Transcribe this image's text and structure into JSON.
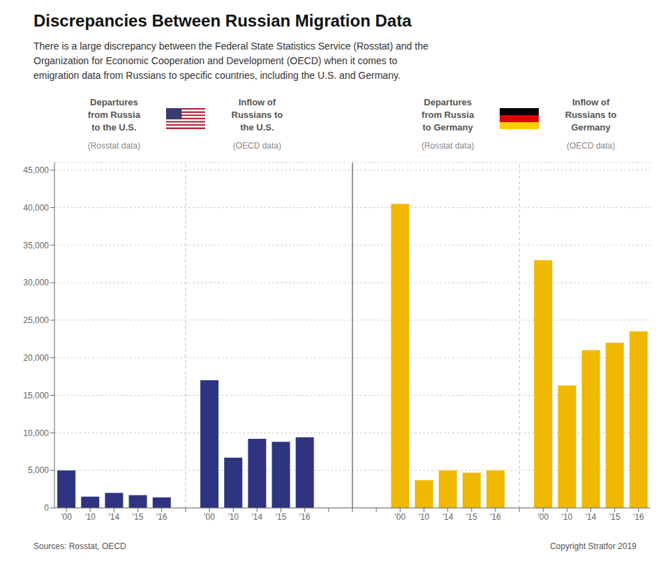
{
  "chart_data": {
    "type": "bar",
    "title": "Discrepancies Between Russian Migration Data",
    "subtitle": "There is a large discrepancy between the Federal State Statistics Service (Rosstat) and the\nOrganization for Economic Cooperation and Development (OECD) when it comes to\nemigration data from Russians to specific countries, including the U.S. and Germany.",
    "categories": [
      "'00",
      "'10",
      "'14",
      "'15",
      "'16",
      "'00",
      "'10",
      "'14",
      "'15",
      "'16",
      "'00",
      "'10",
      "'14",
      "'15",
      "'16",
      "'00",
      "'10",
      "'14",
      "'15",
      "'16"
    ],
    "values": [
      5000,
      1500,
      2000,
      1700,
      1400,
      17000,
      6700,
      9200,
      8800,
      9400,
      40500,
      3700,
      5000,
      4700,
      5000,
      33000,
      16300,
      21000,
      22000,
      23500
    ],
    "colors": [
      "#2e3480",
      "#2e3480",
      "#2e3480",
      "#2e3480",
      "#2e3480",
      "#2e3480",
      "#2e3480",
      "#2e3480",
      "#2e3480",
      "#2e3480",
      "#f0b800",
      "#f0b800",
      "#f0b800",
      "#f0b800",
      "#f0b800",
      "#f0b800",
      "#f0b800",
      "#f0b800",
      "#f0b800",
      "#f0b800"
    ],
    "ylim": [
      0,
      46000
    ],
    "yticks": [
      0,
      {
        "value": 5000,
        "label": "5,000"
      },
      {
        "value": 10000,
        "label": "10,000"
      },
      {
        "value": 15000,
        "label": "15,000"
      },
      {
        "value": 20000,
        "label": "20,000"
      },
      {
        "value": 25000,
        "label": "25,000"
      },
      {
        "value": 30000,
        "label": "30,000"
      },
      {
        "value": 35000,
        "label": "35,000"
      },
      {
        "value": 40000,
        "label": "40,000"
      },
      {
        "value": 45000,
        "label": "45,000"
      }
    ],
    "grid": true,
    "annotations": [
      "Departures\nfrom Russia\nto the U.S.",
      "(Rosstat data)",
      "Inflow of\nRussians to\nthe U.S.",
      "(OECD data)",
      "Departures\nfrom Russia\nto Germany",
      "(Rosstat data)",
      "Inflow of\nRussians to\nGermany",
      "(OECD data)"
    ],
    "source": "Sources: Rosstat, OECD",
    "copyright": "Copyright Stratfor 2019"
  }
}
